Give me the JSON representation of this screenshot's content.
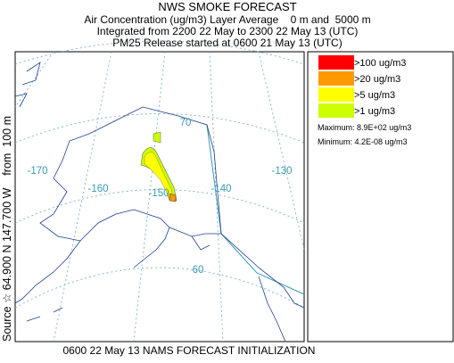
{
  "header": {
    "title": "NWS SMOKE FORECAST",
    "lines": [
      "Air Concentration (ug/m3) Layer Average    0 m and  5000 m",
      "Integrated from 2200 22 May to 2300 22 May 13 (UTC)",
      "PM25 Release started at 0600 21 May 13 (UTC)"
    ]
  },
  "legend": {
    "items": [
      {
        "label": ">100 ug/m3",
        "color": "#ff0000"
      },
      {
        "label": ">20 ug/m3",
        "color": "#ff9900"
      },
      {
        "label": ">5 ug/m3",
        "color": "#ffff00"
      },
      {
        "label": ">1 ug/m3",
        "color": "#ccff00"
      }
    ],
    "maximum": "Maximum: 8.9E+02 ug/m3",
    "minimum": "Minimum: 4.2E-08 ug/m3"
  },
  "map": {
    "longitude_labels": [
      "-170",
      "-160",
      "-150",
      "-140",
      "-130"
    ],
    "latitude_labels": [
      "70",
      "60"
    ]
  },
  "side_label": "Source ☆ 64.900 N 147.700 W    from  100 m",
  "footer": "0600 22 May 13 NAMS FORECAST INITIALIZATION"
}
